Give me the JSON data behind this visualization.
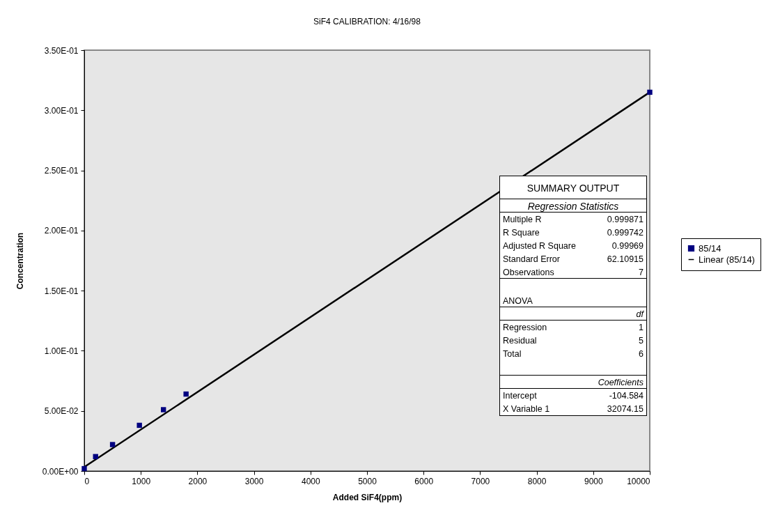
{
  "chart_data": {
    "type": "scatter",
    "title": "SiF4 CALIBRATION: 4/16/98",
    "xlabel": "Added SiF4(ppm)",
    "ylabel": "Concentration",
    "xlim": [
      0,
      10000
    ],
    "xticks": [
      0,
      1000,
      2000,
      3000,
      4000,
      5000,
      6000,
      7000,
      8000,
      9000,
      10000
    ],
    "ylim": [
      0,
      0.35
    ],
    "yticks": [
      {
        "value": 0,
        "label": "0.00E+00"
      },
      {
        "value": 0.05,
        "label": "5.00E-02"
      },
      {
        "value": 0.1,
        "label": "1.00E-01"
      },
      {
        "value": 0.15,
        "label": "1.50E-01"
      },
      {
        "value": 0.2,
        "label": "2.00E-01"
      },
      {
        "value": 0.25,
        "label": "2.50E-01"
      },
      {
        "value": 0.3,
        "label": "3.00E-01"
      },
      {
        "value": 0.35,
        "label": "3.50E-01"
      }
    ],
    "legend": "right",
    "series": [
      {
        "name": "85/14",
        "marker": "square",
        "color": "#000080",
        "x": [
          0,
          200,
          500,
          975,
          1400,
          1800,
          10000
        ],
        "values": [
          0.002,
          0.012,
          0.022,
          0.038,
          0.051,
          0.064,
          0.315
        ]
      },
      {
        "name": "Linear (85/14)",
        "type": "line",
        "marker": "none",
        "color": "#000000",
        "x": [
          0,
          10000
        ],
        "values": [
          0.0033,
          0.315
        ]
      }
    ],
    "annotations": [
      "SUMMARY OUTPUT",
      "Regression Statistics",
      "Multiple R",
      "0.999871",
      "R Square",
      "0.999742",
      "Adjusted R Square",
      "0.99969",
      "Standard Error",
      "62.10915",
      "Observations",
      "7",
      "ANOVA",
      "df",
      "Regression",
      "1",
      "Residual",
      "5",
      "Total",
      "6",
      "Coefficients",
      "Intercept",
      "-104.584",
      "X Variable 1",
      "32074.15"
    ]
  }
}
